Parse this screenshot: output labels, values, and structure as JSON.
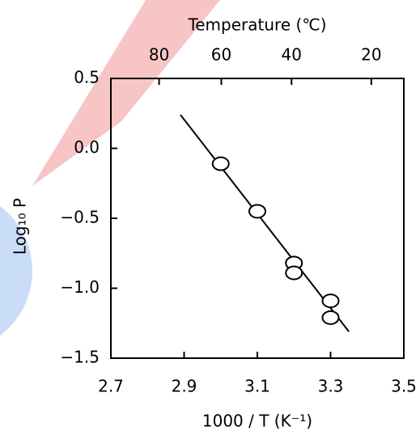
{
  "chart_data": {
    "type": "scatter",
    "x_label": "1000 / T (K⁻¹)",
    "y_label": "Log₁₀ P",
    "top_label": "Temperature (℃)",
    "x": [
      3.0,
      3.1,
      3.2,
      3.2,
      3.3,
      3.3
    ],
    "values": [
      -0.11,
      -0.45,
      -0.82,
      -0.89,
      -1.09,
      -1.21
    ],
    "fit_line": {
      "x": [
        2.89,
        3.35
      ],
      "values": [
        0.24,
        -1.31
      ]
    },
    "xlim": [
      2.7,
      3.5
    ],
    "ylim": [
      -1.5,
      0.5
    ],
    "xticks": [
      2.7,
      2.9,
      3.1,
      3.3,
      3.5
    ],
    "yticks": [
      0.5,
      {
        "value": 0,
        "label": "0.0"
      },
      {
        "value": -0.5,
        "label": "−0.5"
      },
      {
        "value": -1,
        "label": "−1.0"
      },
      {
        "value": -1.5,
        "label": "−1.5"
      }
    ],
    "top_ticks": [
      80,
      60,
      40,
      20
    ],
    "color": "#000000"
  }
}
